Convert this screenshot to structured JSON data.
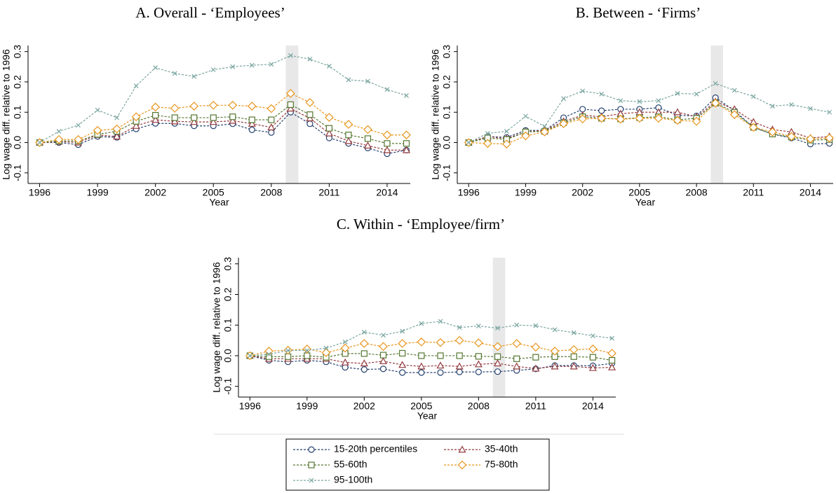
{
  "chart_data": [
    {
      "type": "line",
      "title": "A. Overall - ‘Employees’",
      "xlabel": "Year",
      "ylabel": "Log wage diff. relative to 1996",
      "x": [
        1996,
        1997,
        1998,
        1999,
        2000,
        2001,
        2002,
        2003,
        2004,
        2005,
        2006,
        2007,
        2008,
        2009,
        2010,
        2011,
        2012,
        2013,
        2014,
        2015
      ],
      "xlim": [
        1995.4,
        2015.2
      ],
      "xticks": [
        1996,
        1999,
        2002,
        2005,
        2008,
        2011,
        2014
      ],
      "ylim": [
        -0.135,
        0.32
      ],
      "yticks": [
        -0.1,
        {
          "value": 0,
          "label": "0.0"
        },
        0.1,
        0.2,
        0.3
      ],
      "highlight_x": [
        2008.75,
        2009.4
      ],
      "series": [
        {
          "name": "15-20th percentiles",
          "color": "#26416e",
          "marker": "circle",
          "values": [
            0,
            0,
            -0.007,
            0.02,
            0.017,
            0.045,
            0.063,
            0.063,
            0.055,
            0.055,
            0.062,
            0.042,
            0.033,
            0.1,
            0.062,
            0.015,
            -0.003,
            -0.018,
            -0.037,
            -0.025
          ]
        },
        {
          "name": "35-40th",
          "color": "#943a3e",
          "marker": "triangle",
          "values": [
            0,
            0.003,
            0,
            0.025,
            0.02,
            0.055,
            0.075,
            0.07,
            0.068,
            0.068,
            0.072,
            0.062,
            0.05,
            0.112,
            0.08,
            0.03,
            0.005,
            -0.01,
            -0.025,
            -0.025
          ]
        },
        {
          "name": "55-60th",
          "color": "#55762f",
          "marker": "square",
          "values": [
            0,
            0.005,
            0.005,
            0.027,
            0.037,
            0.07,
            0.09,
            0.082,
            0.082,
            0.082,
            0.085,
            0.075,
            0.075,
            0.125,
            0.092,
            0.047,
            0.025,
            0.013,
            -0.003,
            -0.003
          ]
        },
        {
          "name": "75-80th",
          "color": "#e8961e",
          "marker": "diamond",
          "values": [
            0,
            0.01,
            0.01,
            0.04,
            0.045,
            0.085,
            0.117,
            0.113,
            0.12,
            0.123,
            0.123,
            0.12,
            0.112,
            0.162,
            0.132,
            0.083,
            0.06,
            0.043,
            0.025,
            0.025
          ]
        },
        {
          "name": "95-100th",
          "color": "#7aa6a0",
          "marker": "x",
          "values": [
            0,
            0.037,
            0.057,
            0.107,
            0.082,
            0.187,
            0.247,
            0.228,
            0.218,
            0.24,
            0.25,
            0.255,
            0.258,
            0.287,
            0.275,
            0.252,
            0.207,
            0.202,
            0.175,
            0.155
          ]
        }
      ]
    },
    {
      "type": "line",
      "title": "B. Between - ‘Firms’",
      "xlabel": "Year",
      "ylabel": "Log wage diff. relative to 1996",
      "x": [
        1996,
        1997,
        1998,
        1999,
        2000,
        2001,
        2002,
        2003,
        2004,
        2005,
        2006,
        2007,
        2008,
        2009,
        2010,
        2011,
        2012,
        2013,
        2014,
        2015
      ],
      "xlim": [
        1995.4,
        2015.2
      ],
      "xticks": [
        1996,
        1999,
        2002,
        2005,
        2008,
        2011,
        2014
      ],
      "ylim": [
        -0.135,
        0.32
      ],
      "yticks": [
        -0.1,
        {
          "value": 0,
          "label": "0.0"
        },
        0.1,
        0.2,
        0.3
      ],
      "highlight_x": [
        2008.75,
        2009.4
      ],
      "series": [
        {
          "color": "#26416e",
          "marker": "circle",
          "values": [
            0,
            0.02,
            0.017,
            0.04,
            0.04,
            0.082,
            0.11,
            0.105,
            0.11,
            0.11,
            0.115,
            0.09,
            0.088,
            0.148,
            0.105,
            0.05,
            0.028,
            0.015,
            -0.005,
            -0.003
          ]
        },
        {
          "color": "#943a3e",
          "marker": "triangle",
          "values": [
            0,
            0.02,
            0.013,
            0.035,
            0.04,
            0.07,
            0.09,
            0.085,
            0.095,
            0.1,
            0.1,
            0.1,
            0.085,
            0.135,
            0.11,
            0.068,
            0.043,
            0.035,
            0.015,
            0.02
          ]
        },
        {
          "color": "#55762f",
          "marker": "square",
          "values": [
            0,
            0.015,
            0.01,
            0.035,
            0.037,
            0.065,
            0.085,
            0.08,
            0.078,
            0.082,
            0.085,
            0.075,
            0.08,
            0.13,
            0.1,
            0.05,
            0.028,
            0.018,
            0.008,
            0.01
          ]
        },
        {
          "color": "#e8961e",
          "marker": "diamond",
          "values": [
            0,
            -0.003,
            -0.005,
            0.022,
            0.035,
            0.062,
            0.078,
            0.08,
            0.077,
            0.08,
            0.08,
            0.073,
            0.07,
            0.13,
            0.092,
            0.05,
            0.035,
            0.02,
            0.012,
            0.015
          ]
        },
        {
          "color": "#7aa6a0",
          "marker": "x",
          "values": [
            0,
            0.03,
            0.037,
            0.087,
            0.053,
            0.145,
            0.17,
            0.16,
            0.138,
            0.135,
            0.138,
            0.162,
            0.16,
            0.195,
            0.172,
            0.152,
            0.12,
            0.125,
            0.112,
            0.1
          ]
        }
      ]
    },
    {
      "type": "line",
      "title": "C. Within - ‘Employee/firm’",
      "xlabel": "Year",
      "ylabel": "Log wage diff. relative to 1996",
      "x": [
        1996,
        1997,
        1998,
        1999,
        2000,
        2001,
        2002,
        2003,
        2004,
        2005,
        2006,
        2007,
        2008,
        2009,
        2010,
        2011,
        2012,
        2013,
        2014,
        2015
      ],
      "xlim": [
        1995.4,
        2015.2
      ],
      "xticks": [
        1996,
        1999,
        2002,
        2005,
        2008,
        2011,
        2014
      ],
      "ylim": [
        -0.135,
        0.32
      ],
      "yticks": [
        -0.1,
        {
          "value": 0,
          "label": "0.0"
        },
        0.1,
        0.2,
        0.3
      ],
      "highlight_x": [
        2008.75,
        2009.4
      ],
      "series": [
        {
          "color": "#26416e",
          "marker": "circle",
          "values": [
            0,
            -0.015,
            -0.02,
            -0.015,
            -0.02,
            -0.038,
            -0.045,
            -0.043,
            -0.055,
            -0.055,
            -0.055,
            -0.053,
            -0.053,
            -0.052,
            -0.048,
            -0.043,
            -0.032,
            -0.032,
            -0.033,
            -0.025
          ]
        },
        {
          "color": "#943a3e",
          "marker": "triangle",
          "values": [
            0,
            -0.01,
            -0.01,
            -0.01,
            -0.01,
            -0.022,
            -0.025,
            -0.018,
            -0.03,
            -0.035,
            -0.032,
            -0.035,
            -0.028,
            -0.025,
            -0.035,
            -0.042,
            -0.035,
            -0.035,
            -0.04,
            -0.038
          ]
        },
        {
          "color": "#55762f",
          "marker": "square",
          "values": [
            0,
            -0.003,
            -0.003,
            0,
            -0.005,
            0.007,
            0.007,
            0.002,
            0.008,
            0,
            0,
            0,
            -0.002,
            -0.003,
            -0.01,
            -0.005,
            -0.003,
            -0.003,
            -0.005,
            -0.015
          ]
        },
        {
          "color": "#e8961e",
          "marker": "diamond",
          "values": [
            0,
            0.015,
            0.018,
            0.022,
            0.01,
            0.025,
            0.04,
            0.03,
            0.04,
            0.045,
            0.043,
            0.05,
            0.042,
            0.03,
            0.04,
            0.028,
            0.015,
            0.02,
            0.022,
            0.008
          ]
        },
        {
          "color": "#7aa6a0",
          "marker": "x",
          "values": [
            0,
            0.005,
            0.017,
            0.017,
            0.025,
            0.045,
            0.077,
            0.067,
            0.08,
            0.105,
            0.112,
            0.092,
            0.097,
            0.09,
            0.1,
            0.098,
            0.085,
            0.075,
            0.065,
            0.057
          ]
        }
      ]
    }
  ]
}
